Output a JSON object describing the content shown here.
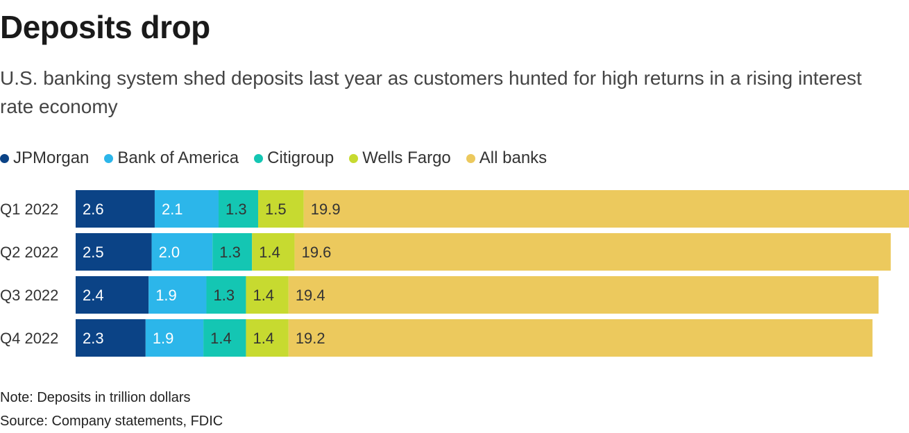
{
  "header": {
    "title": "Deposits drop",
    "subtitle": "U.S. banking system shed deposits last year as customers hunted for high returns in a rising interest rate economy"
  },
  "chart_data": {
    "type": "bar",
    "orientation": "horizontal",
    "stacked": true,
    "title": "Deposits drop",
    "categories": [
      "Q1 2022",
      "Q2 2022",
      "Q3 2022",
      "Q4 2022"
    ],
    "series": [
      {
        "name": "JPMorgan",
        "color": "#0b4386",
        "values": [
          2.6,
          2.5,
          2.4,
          2.3
        ]
      },
      {
        "name": "Bank of America",
        "color": "#2cb6ea",
        "values": [
          2.1,
          2.0,
          1.9,
          1.9
        ]
      },
      {
        "name": "Citigroup",
        "color": "#14c6b3",
        "values": [
          1.3,
          1.3,
          1.3,
          1.4
        ]
      },
      {
        "name": "Wells Fargo",
        "color": "#c7da30",
        "values": [
          1.5,
          1.4,
          1.4,
          1.4
        ]
      },
      {
        "name": "All banks",
        "color": "#ecc95d",
        "values": [
          19.9,
          19.6,
          19.4,
          19.2
        ]
      }
    ],
    "legend": "top-left",
    "grid": false,
    "units": "trillion dollars"
  },
  "footer": {
    "note": "Note: Deposits in trillion dollars",
    "source": "Source: Company statements, FDIC"
  }
}
